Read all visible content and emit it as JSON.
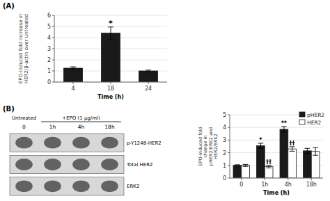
{
  "chart_data": [
    {
      "type": "bar",
      "title": "(A)",
      "categories": [
        "4",
        "18",
        "24"
      ],
      "values": [
        1.25,
        4.4,
        1.0
      ],
      "errors": [
        0.12,
        0.55,
        0.08
      ],
      "color": "#1a1a1a",
      "xlabel": "Time (h)",
      "ylabel": "EPO-induced fold increase in\nHER2/β-actin over untreated",
      "ylim": [
        0,
        6
      ],
      "yticks": [
        0,
        1,
        2,
        3,
        4,
        5,
        6
      ],
      "annotations": [
        {
          "text": "*",
          "index": 1
        }
      ]
    },
    {
      "type": "blot",
      "title": "(B)",
      "categories": [
        "0",
        "1h",
        "4h",
        "18h"
      ],
      "rows": [
        "p-Y1248-HER2",
        "Total HER2",
        "ERK2"
      ],
      "annotations": [
        "Untreated",
        "+EPO (1 μg/ml)"
      ]
    },
    {
      "type": "bar",
      "categories": [
        "0",
        "1h",
        "4h",
        "18h"
      ],
      "series": [
        {
          "name": "pHER2",
          "color": "#1a1a1a",
          "values": [
            1.0,
            2.55,
            3.85,
            2.15
          ],
          "errors": [
            0.05,
            0.2,
            0.22,
            0.2
          ],
          "annotations": [
            {
              "text": "*",
              "index": 1
            },
            {
              "text": "**",
              "index": 2
            }
          ]
        },
        {
          "name": "HER2",
          "color": "#ffffff",
          "values": [
            1.0,
            0.9,
            2.3,
            2.1
          ],
          "errors": [
            0.08,
            0.1,
            0.18,
            0.3
          ],
          "annotations": [
            {
              "text": "††",
              "index": 1
            },
            {
              "text": "††",
              "index": 2
            }
          ]
        }
      ],
      "xlabel": "Time (h)",
      "ylabel": "EPO-induced fold\nchange in\npHER2/ERK2 and\nHER2/ERK2",
      "ylim": [
        0,
        5
      ],
      "yticks": [
        0,
        1,
        2,
        3,
        4,
        5
      ],
      "legend": "upper right"
    }
  ]
}
